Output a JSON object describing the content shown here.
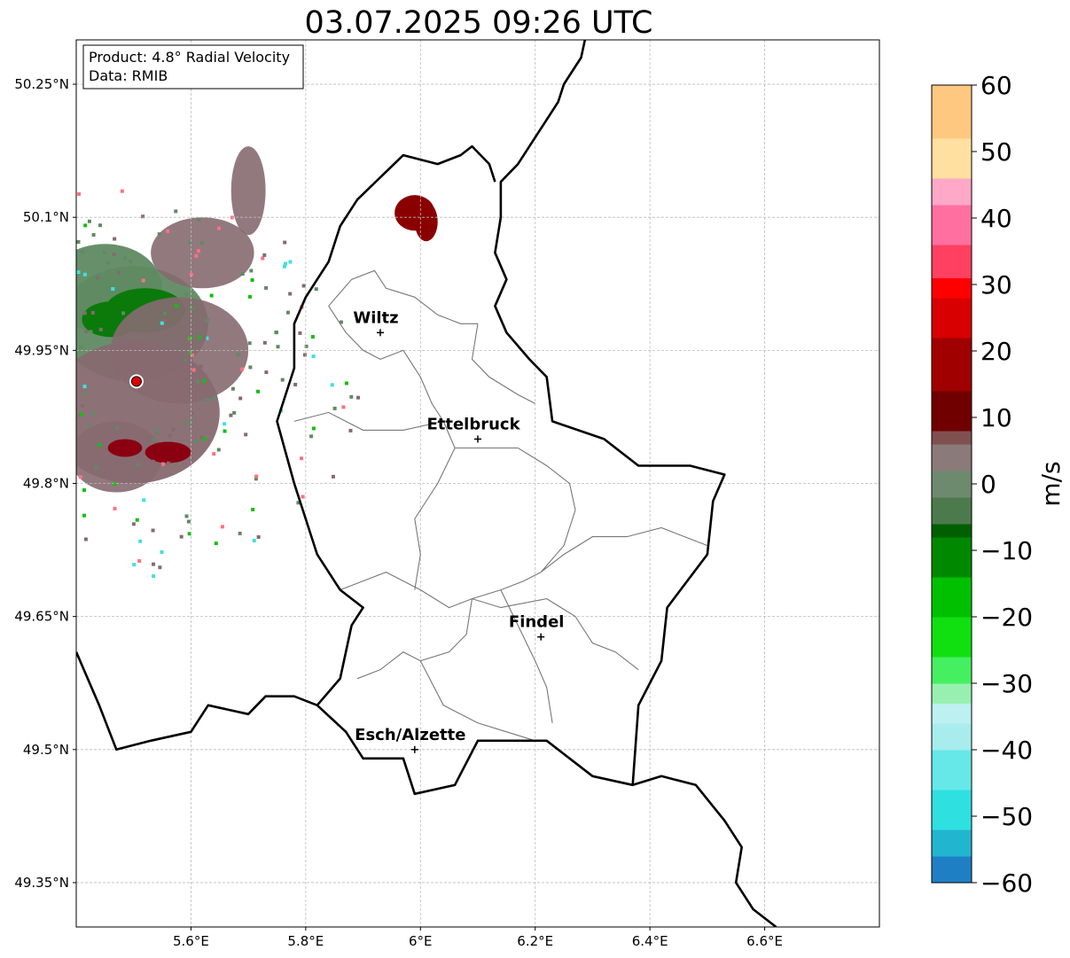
{
  "title": "03.07.2025 09:26 UTC",
  "info_box": {
    "product": "Product: 4.8° Radial Velocity",
    "data": "Data: RMIB"
  },
  "axes": {
    "lon_range": [
      5.4,
      6.8
    ],
    "lat_range": [
      49.3,
      50.3
    ],
    "x_ticks": [
      {
        "value": 5.6,
        "label": "5.6°E"
      },
      {
        "value": 5.8,
        "label": "5.8°E"
      },
      {
        "value": 6.0,
        "label": "6°E"
      },
      {
        "value": 6.2,
        "label": "6.2°E"
      },
      {
        "value": 6.4,
        "label": "6.4°E"
      },
      {
        "value": 6.6,
        "label": "6.6°E"
      }
    ],
    "y_ticks": [
      {
        "value": 49.35,
        "label": "49.35°N"
      },
      {
        "value": 49.5,
        "label": "49.5°N"
      },
      {
        "value": 49.65,
        "label": "49.65°N"
      },
      {
        "value": 49.8,
        "label": "49.8°N"
      },
      {
        "value": 49.95,
        "label": "49.95°N"
      },
      {
        "value": 50.1,
        "label": "50.1°N"
      },
      {
        "value": 50.25,
        "label": "50.25°N"
      }
    ],
    "grid": true
  },
  "cities": [
    {
      "name": "Wiltz",
      "lon": 5.93,
      "lat": 49.97
    },
    {
      "name": "Ettelbruck",
      "lon": 6.1,
      "lat": 49.85
    },
    {
      "name": "Findel",
      "lon": 6.21,
      "lat": 49.627
    },
    {
      "name": "Esch/Alzette",
      "lon": 5.99,
      "lat": 49.5
    }
  ],
  "radar_site": {
    "lon": 5.505,
    "lat": 49.915
  },
  "colorbar": {
    "label": "m/s",
    "min": -60,
    "max": 60,
    "ticks": [
      {
        "value": 60,
        "label": "60"
      },
      {
        "value": 50,
        "label": "50"
      },
      {
        "value": 40,
        "label": "40"
      },
      {
        "value": 30,
        "label": "30"
      },
      {
        "value": 20,
        "label": "20"
      },
      {
        "value": 10,
        "label": "10"
      },
      {
        "value": 0,
        "label": "0"
      },
      {
        "value": -10,
        "label": "−10"
      },
      {
        "value": -20,
        "label": "−20"
      },
      {
        "value": -30,
        "label": "−30"
      },
      {
        "value": -40,
        "label": "−40"
      },
      {
        "value": -50,
        "label": "−50"
      },
      {
        "value": -60,
        "label": "−60"
      }
    ],
    "stops": [
      {
        "value": -60,
        "color": "#1f7fc4"
      },
      {
        "value": -56,
        "color": "#22b5d0"
      },
      {
        "value": -52,
        "color": "#2fe0e0"
      },
      {
        "value": -46,
        "color": "#66e8e8"
      },
      {
        "value": -40,
        "color": "#a8ecee"
      },
      {
        "value": -36,
        "color": "#bdf0f0"
      },
      {
        "value": -33,
        "color": "#98f0b0"
      },
      {
        "value": -30,
        "color": "#44f060"
      },
      {
        "value": -26,
        "color": "#10e010"
      },
      {
        "value": -20,
        "color": "#00c000"
      },
      {
        "value": -14,
        "color": "#008800"
      },
      {
        "value": -8,
        "color": "#006000"
      },
      {
        "value": -6,
        "color": "#4d7a4d"
      },
      {
        "value": -2,
        "color": "#6e8a6e"
      },
      {
        "value": 2,
        "color": "#8a7a7a"
      },
      {
        "value": 6,
        "color": "#805050"
      },
      {
        "value": 8,
        "color": "#700000"
      },
      {
        "value": 14,
        "color": "#a00000"
      },
      {
        "value": 22,
        "color": "#d80000"
      },
      {
        "value": 28,
        "color": "#ff0000"
      },
      {
        "value": 31,
        "color": "#ff4060"
      },
      {
        "value": 36,
        "color": "#ff70a0"
      },
      {
        "value": 42,
        "color": "#ffa8c8"
      },
      {
        "value": 46,
        "color": "#ffe0a0"
      },
      {
        "value": 52,
        "color": "#ffc880"
      },
      {
        "value": 60,
        "color": "#ff9040"
      }
    ]
  },
  "echoes": [
    {
      "lon": 5.5,
      "lat": 49.98,
      "rx": 0.13,
      "ry": 0.065,
      "color": "#5f8a62",
      "opacity": 0.95
    },
    {
      "lon": 5.45,
      "lat": 50.02,
      "rx": 0.1,
      "ry": 0.05,
      "color": "#5f8a62",
      "opacity": 0.95
    },
    {
      "lon": 5.52,
      "lat": 49.995,
      "rx": 0.07,
      "ry": 0.025,
      "color": "#0a7a0a",
      "opacity": 1
    },
    {
      "lon": 5.46,
      "lat": 49.985,
      "rx": 0.05,
      "ry": 0.02,
      "color": "#0a7a0a",
      "opacity": 1
    },
    {
      "lon": 5.5,
      "lat": 49.88,
      "rx": 0.15,
      "ry": 0.08,
      "color": "#866a70",
      "opacity": 0.95
    },
    {
      "lon": 5.58,
      "lat": 49.95,
      "rx": 0.12,
      "ry": 0.06,
      "color": "#866a70",
      "opacity": 0.9
    },
    {
      "lon": 5.62,
      "lat": 50.06,
      "rx": 0.09,
      "ry": 0.04,
      "color": "#866a70",
      "opacity": 0.9
    },
    {
      "lon": 5.7,
      "lat": 50.13,
      "rx": 0.03,
      "ry": 0.05,
      "color": "#866a70",
      "opacity": 0.9
    },
    {
      "lon": 5.47,
      "lat": 49.83,
      "rx": 0.08,
      "ry": 0.04,
      "color": "#866a70",
      "opacity": 0.9
    },
    {
      "lon": 5.56,
      "lat": 49.835,
      "rx": 0.04,
      "ry": 0.012,
      "color": "#8a0010",
      "opacity": 1
    },
    {
      "lon": 5.485,
      "lat": 49.84,
      "rx": 0.03,
      "ry": 0.01,
      "color": "#8a0010",
      "opacity": 1
    },
    {
      "lon": 5.99,
      "lat": 50.105,
      "rx": 0.035,
      "ry": 0.02,
      "color": "#8a0000",
      "opacity": 1
    },
    {
      "lon": 6.01,
      "lat": 50.095,
      "rx": 0.02,
      "ry": 0.022,
      "color": "#8a0000",
      "opacity": 1
    }
  ],
  "borders": {
    "national": [
      [
        [
          6.29,
          50.31
        ],
        [
          6.28,
          50.28
        ],
        [
          6.25,
          50.25
        ],
        [
          6.24,
          50.23
        ],
        [
          6.2,
          50.19
        ],
        [
          6.17,
          50.16
        ],
        [
          6.14,
          50.14
        ],
        [
          6.14,
          50.1
        ],
        [
          6.13,
          50.06
        ],
        [
          6.15,
          50.03
        ],
        [
          6.13,
          50.0
        ],
        [
          6.15,
          49.97
        ],
        [
          6.19,
          49.94
        ],
        [
          6.22,
          49.92
        ],
        [
          6.23,
          49.87
        ],
        [
          6.32,
          49.85
        ],
        [
          6.38,
          49.82
        ],
        [
          6.47,
          49.82
        ],
        [
          6.53,
          49.81
        ],
        [
          6.51,
          49.78
        ],
        [
          6.5,
          49.72
        ],
        [
          6.43,
          49.66
        ],
        [
          6.42,
          49.6
        ],
        [
          6.38,
          49.55
        ],
        [
          6.37,
          49.46
        ],
        [
          6.3,
          49.47
        ],
        [
          6.22,
          49.51
        ],
        [
          6.1,
          49.51
        ],
        [
          6.06,
          49.46
        ],
        [
          5.99,
          49.45
        ],
        [
          5.97,
          49.49
        ],
        [
          5.9,
          49.49
        ],
        [
          5.87,
          49.52
        ],
        [
          5.82,
          49.55
        ]
      ],
      [
        [
          5.82,
          49.55
        ],
        [
          5.86,
          49.58
        ],
        [
          5.88,
          49.64
        ],
        [
          5.9,
          49.66
        ],
        [
          5.86,
          49.68
        ],
        [
          5.82,
          49.72
        ],
        [
          5.78,
          49.8
        ],
        [
          5.75,
          49.87
        ],
        [
          5.78,
          49.93
        ],
        [
          5.78,
          49.98
        ],
        [
          5.8,
          50.01
        ],
        [
          5.84,
          50.05
        ],
        [
          5.86,
          50.09
        ],
        [
          5.89,
          50.12
        ],
        [
          5.97,
          50.17
        ],
        [
          6.03,
          50.16
        ],
        [
          6.07,
          50.17
        ],
        [
          6.09,
          50.18
        ],
        [
          6.12,
          50.16
        ],
        [
          6.13,
          50.14
        ]
      ],
      [
        [
          5.4,
          49.61
        ],
        [
          5.44,
          49.55
        ],
        [
          5.47,
          49.5
        ],
        [
          5.53,
          49.51
        ],
        [
          5.6,
          49.52
        ],
        [
          5.63,
          49.55
        ],
        [
          5.7,
          49.54
        ],
        [
          5.73,
          49.56
        ],
        [
          5.78,
          49.56
        ],
        [
          5.82,
          49.55
        ]
      ],
      [
        [
          6.37,
          49.46
        ],
        [
          6.42,
          49.47
        ],
        [
          6.48,
          49.46
        ],
        [
          6.53,
          49.42
        ],
        [
          6.56,
          49.39
        ],
        [
          6.55,
          49.35
        ],
        [
          6.58,
          49.32
        ],
        [
          6.62,
          49.3
        ]
      ]
    ],
    "communal": [
      [
        [
          5.84,
          50.0
        ],
        [
          5.88,
          50.03
        ],
        [
          5.92,
          50.04
        ],
        [
          5.94,
          50.02
        ],
        [
          5.99,
          50.01
        ],
        [
          6.03,
          49.99
        ],
        [
          6.07,
          49.98
        ],
        [
          6.1,
          49.98
        ]
      ],
      [
        [
          5.84,
          50.0
        ],
        [
          5.87,
          49.97
        ],
        [
          5.9,
          49.95
        ],
        [
          5.93,
          49.94
        ],
        [
          5.97,
          49.95
        ],
        [
          6.0,
          49.92
        ],
        [
          6.02,
          49.89
        ],
        [
          6.04,
          49.87
        ]
      ],
      [
        [
          6.1,
          49.98
        ],
        [
          6.09,
          49.94
        ],
        [
          6.12,
          49.92
        ],
        [
          6.17,
          49.9
        ],
        [
          6.2,
          49.89
        ]
      ],
      [
        [
          5.78,
          49.87
        ],
        [
          5.84,
          49.88
        ],
        [
          5.9,
          49.86
        ],
        [
          5.97,
          49.86
        ],
        [
          6.04,
          49.87
        ]
      ],
      [
        [
          6.04,
          49.87
        ],
        [
          6.06,
          49.84
        ],
        [
          6.11,
          49.84
        ],
        [
          6.17,
          49.84
        ],
        [
          6.22,
          49.82
        ],
        [
          6.26,
          49.8
        ],
        [
          6.27,
          49.77
        ]
      ],
      [
        [
          6.06,
          49.84
        ],
        [
          6.03,
          49.8
        ],
        [
          5.99,
          49.76
        ],
        [
          6.0,
          49.72
        ],
        [
          5.99,
          49.68
        ]
      ],
      [
        [
          5.86,
          49.68
        ],
        [
          5.94,
          49.7
        ],
        [
          6.0,
          49.68
        ],
        [
          6.05,
          49.66
        ],
        [
          6.09,
          49.67
        ],
        [
          6.14,
          49.68
        ],
        [
          6.18,
          49.69
        ],
        [
          6.21,
          49.7
        ]
      ],
      [
        [
          6.27,
          49.77
        ],
        [
          6.25,
          49.73
        ],
        [
          6.21,
          49.7
        ],
        [
          6.25,
          49.72
        ],
        [
          6.3,
          49.74
        ],
        [
          6.36,
          49.74
        ],
        [
          6.42,
          49.75
        ],
        [
          6.5,
          49.73
        ]
      ],
      [
        [
          6.09,
          49.67
        ],
        [
          6.08,
          49.63
        ],
        [
          6.05,
          49.61
        ],
        [
          6.0,
          49.6
        ],
        [
          5.97,
          49.61
        ],
        [
          5.93,
          49.59
        ],
        [
          5.89,
          49.58
        ]
      ],
      [
        [
          6.14,
          49.68
        ],
        [
          6.17,
          49.64
        ],
        [
          6.2,
          49.6
        ],
        [
          6.22,
          49.57
        ],
        [
          6.23,
          49.53
        ]
      ],
      [
        [
          6.09,
          49.67
        ],
        [
          6.14,
          49.66
        ],
        [
          6.22,
          49.67
        ],
        [
          6.27,
          49.65
        ],
        [
          6.3,
          49.62
        ],
        [
          6.34,
          49.61
        ],
        [
          6.38,
          49.59
        ]
      ],
      [
        [
          6.0,
          49.6
        ],
        [
          6.04,
          49.55
        ],
        [
          6.1,
          49.53
        ],
        [
          6.15,
          49.52
        ],
        [
          6.2,
          49.51
        ]
      ]
    ]
  }
}
